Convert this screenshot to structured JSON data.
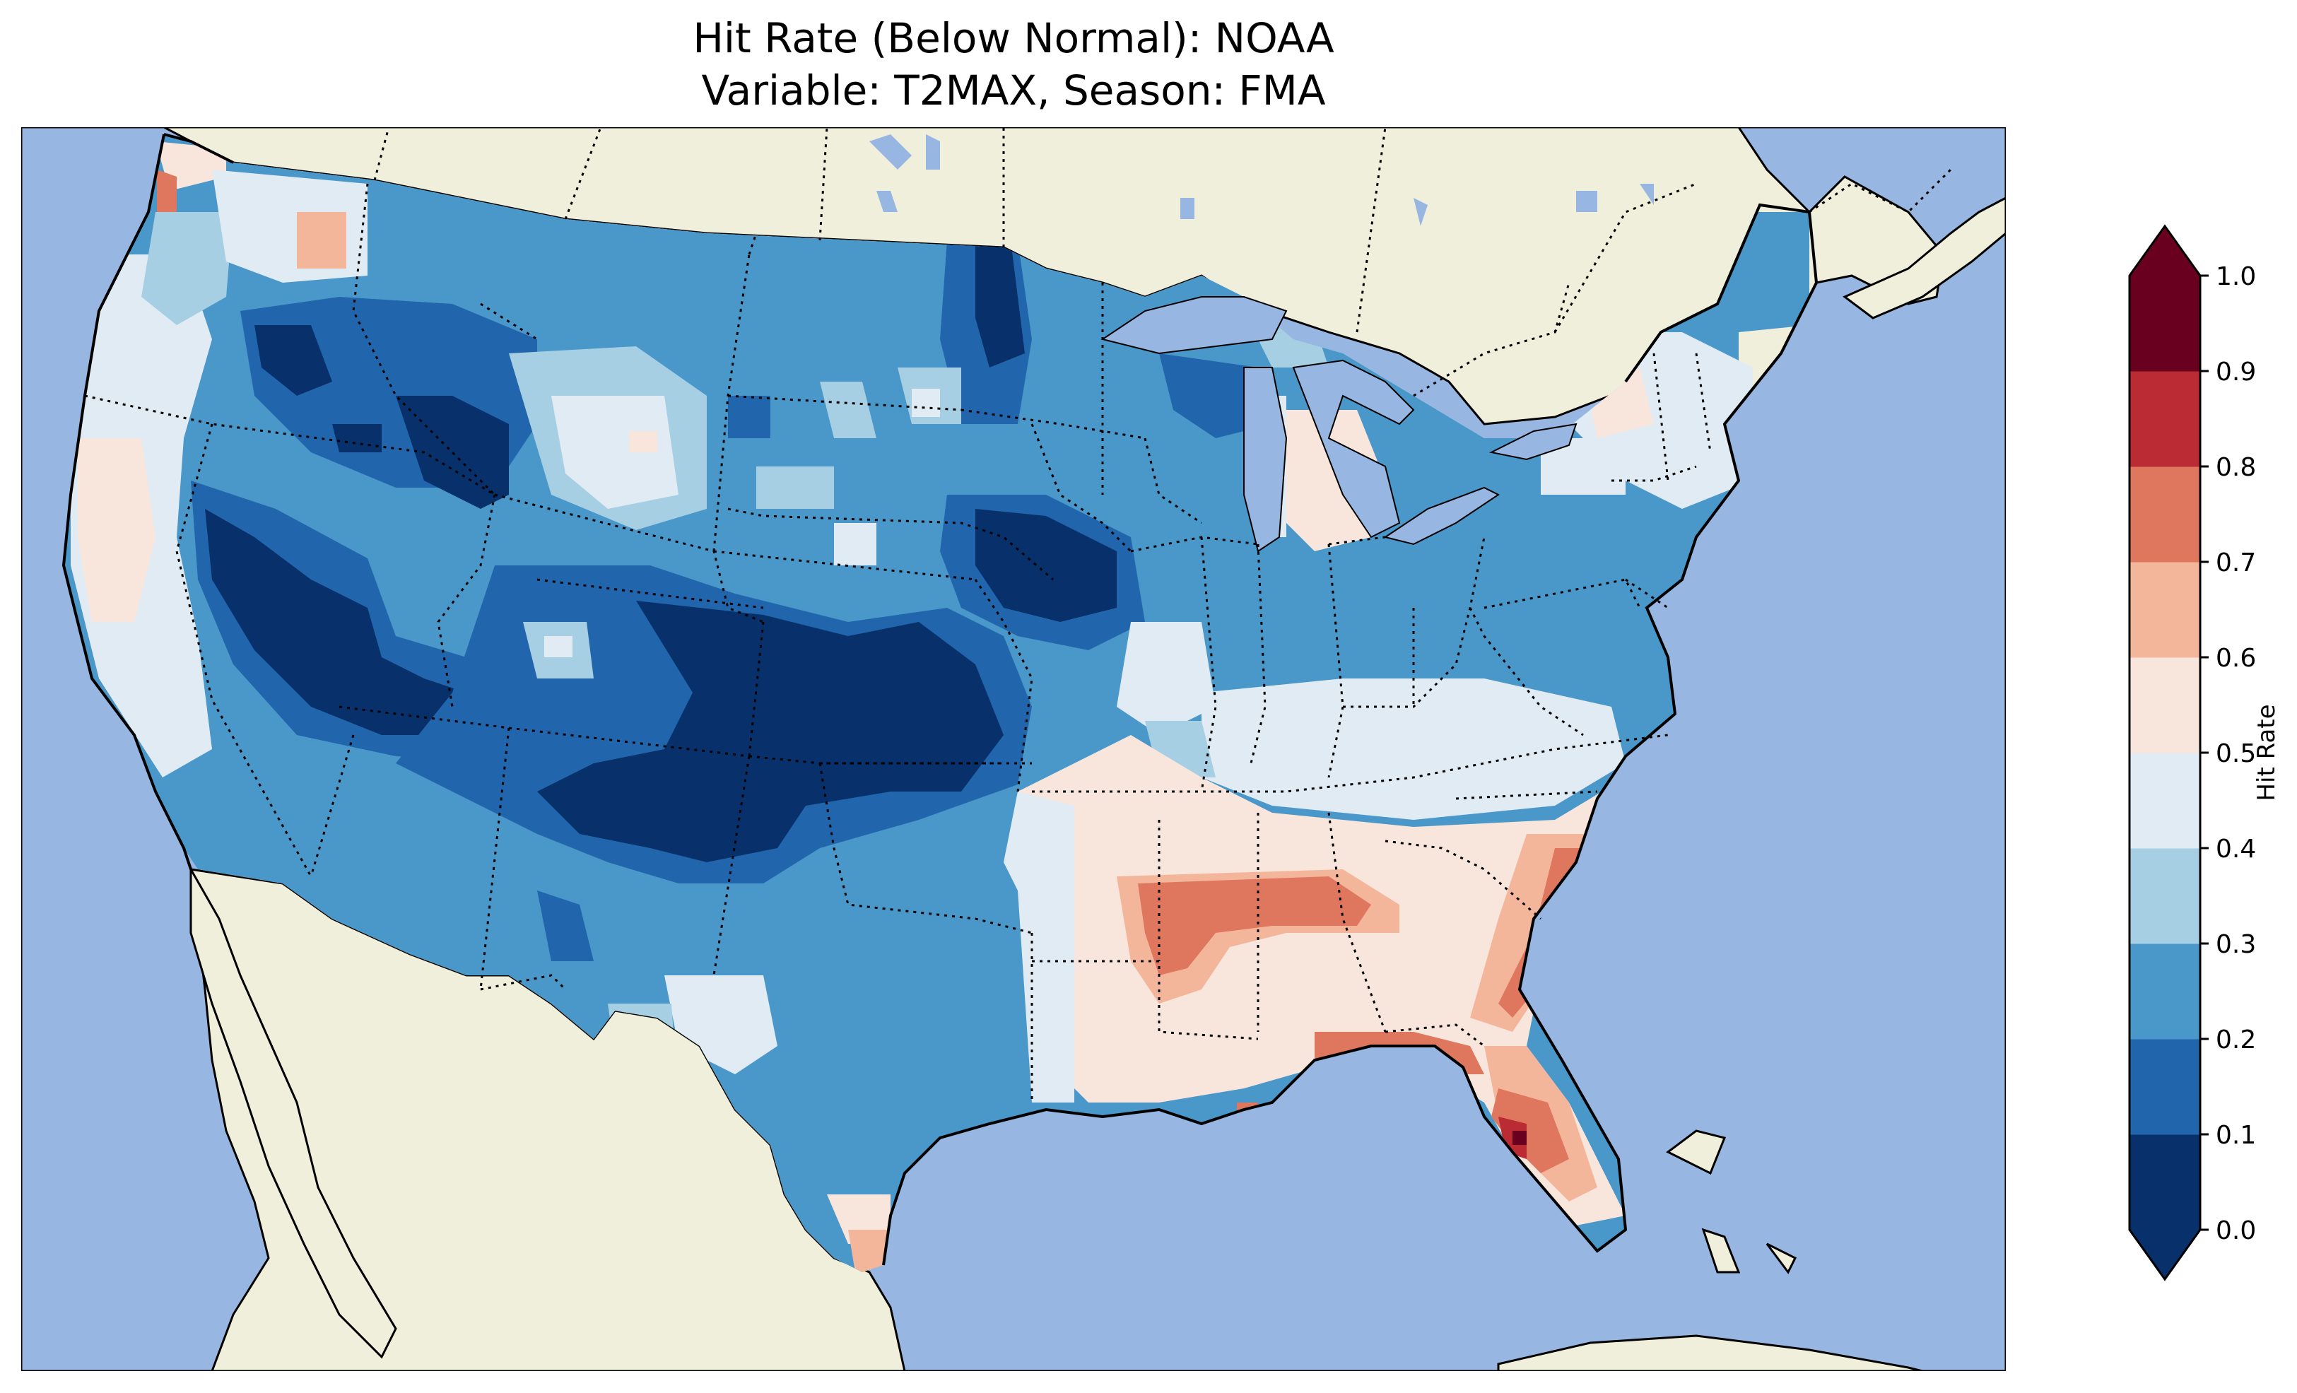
{
  "title": {
    "line1": "Hit Rate (Below Normal): NOAA",
    "line2": "Variable: T2MAX, Season: FMA"
  },
  "map": {
    "ocean_color": "#97b6e1",
    "land_color": "#efefdb",
    "outline_color": "#000000"
  },
  "colorbar": {
    "label": "Hit Rate",
    "extend": "both",
    "ticks": [
      "0.0",
      "0.1",
      "0.2",
      "0.3",
      "0.4",
      "0.5",
      "0.6",
      "0.7",
      "0.8",
      "0.9",
      "1.0"
    ],
    "colors": [
      "#053061",
      "#2166ac",
      "#4393c3",
      "#92c5de",
      "#d1e5f0",
      "#f7f7f7",
      "#fddbc7",
      "#f4a582",
      "#d6604d",
      "#b2182b",
      "#67001f"
    ],
    "colors_used": [
      "#08306b",
      "#2166ac",
      "#4a97c9",
      "#a6cfe3",
      "#e1ebf3",
      "#f8e6dd",
      "#f4b69a",
      "#df765e",
      "#bb2b34",
      "#6a0020"
    ]
  }
}
